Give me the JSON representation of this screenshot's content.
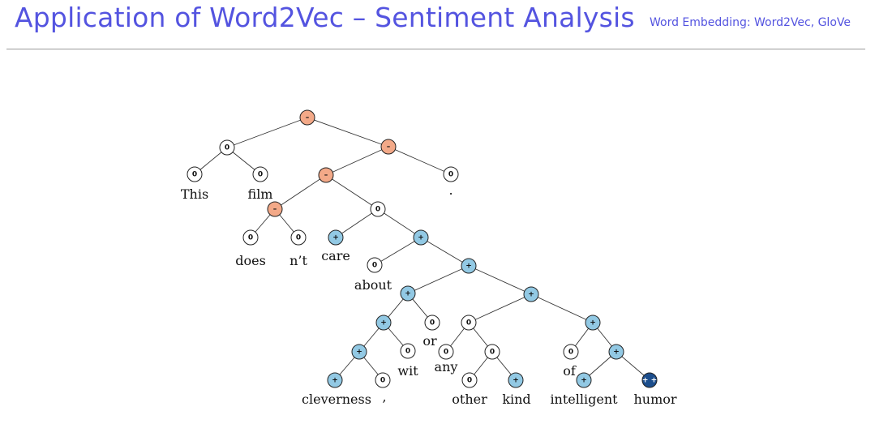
{
  "header": {
    "title": "Application of Word2Vec – Sentiment Analysis",
    "subtitle": "Word Embedding: Word2Vec, GloVe"
  },
  "colors": {
    "negative": "#f3a988",
    "neutral": "#ffffff",
    "positive": "#92c9e4",
    "very_positive": "#1c4e8c",
    "title": "#5454e0"
  },
  "tree": {
    "nodes": [
      {
        "id": "n_root",
        "label": "–",
        "sentiment": "negative"
      },
      {
        "id": "n_this_film",
        "label": "0",
        "sentiment": "neutral"
      },
      {
        "id": "n_this",
        "label": "0",
        "sentiment": "neutral"
      },
      {
        "id": "n_film",
        "label": "0",
        "sentiment": "neutral"
      },
      {
        "id": "n_vp",
        "label": "–",
        "sentiment": "negative"
      },
      {
        "id": "n_vp2",
        "label": "–",
        "sentiment": "negative"
      },
      {
        "id": "n_period",
        "label": "0",
        "sentiment": "neutral"
      },
      {
        "id": "n_doesnt",
        "label": "–",
        "sentiment": "negative"
      },
      {
        "id": "n_does",
        "label": "0",
        "sentiment": "neutral"
      },
      {
        "id": "n_nt",
        "label": "0",
        "sentiment": "neutral"
      },
      {
        "id": "n_care_phrase",
        "label": "0",
        "sentiment": "neutral"
      },
      {
        "id": "n_care",
        "label": "+",
        "sentiment": "positive"
      },
      {
        "id": "n_about_phrase",
        "label": "+",
        "sentiment": "positive"
      },
      {
        "id": "n_about",
        "label": "0",
        "sentiment": "neutral"
      },
      {
        "id": "n_np_top",
        "label": "+",
        "sentiment": "positive"
      },
      {
        "id": "n_cwo",
        "label": "+",
        "sentiment": "positive"
      },
      {
        "id": "n_cw",
        "label": "+",
        "sentiment": "positive"
      },
      {
        "id": "n_c_comma",
        "label": "+",
        "sentiment": "positive"
      },
      {
        "id": "n_cleverness",
        "label": "+",
        "sentiment": "positive"
      },
      {
        "id": "n_comma",
        "label": "0",
        "sentiment": "neutral"
      },
      {
        "id": "n_wit",
        "label": "0",
        "sentiment": "neutral"
      },
      {
        "id": "n_or",
        "label": "0",
        "sentiment": "neutral"
      },
      {
        "id": "n_any_phrase",
        "label": "+",
        "sentiment": "positive"
      },
      {
        "id": "n_aok",
        "label": "0",
        "sentiment": "neutral"
      },
      {
        "id": "n_any",
        "label": "0",
        "sentiment": "neutral"
      },
      {
        "id": "n_ok",
        "label": "0",
        "sentiment": "neutral"
      },
      {
        "id": "n_other",
        "label": "0",
        "sentiment": "neutral"
      },
      {
        "id": "n_kind",
        "label": "+",
        "sentiment": "positive"
      },
      {
        "id": "n_of_phrase",
        "label": "+",
        "sentiment": "positive"
      },
      {
        "id": "n_of",
        "label": "0",
        "sentiment": "neutral"
      },
      {
        "id": "n_ih",
        "label": "+",
        "sentiment": "positive"
      },
      {
        "id": "n_intelligent",
        "label": "+",
        "sentiment": "positive"
      },
      {
        "id": "n_humor",
        "label": "+ +",
        "sentiment": "very_positive"
      }
    ],
    "words": [
      {
        "node": "n_this",
        "text": "This"
      },
      {
        "node": "n_film",
        "text": "film"
      },
      {
        "node": "n_period",
        "text": "."
      },
      {
        "node": "n_does",
        "text": "does"
      },
      {
        "node": "n_nt",
        "text": "n’t"
      },
      {
        "node": "n_care",
        "text": "care"
      },
      {
        "node": "n_about",
        "text": "about"
      },
      {
        "node": "n_cleverness",
        "text": "cleverness"
      },
      {
        "node": "n_comma",
        "text": ","
      },
      {
        "node": "n_wit",
        "text": "wit"
      },
      {
        "node": "n_or",
        "text": "or"
      },
      {
        "node": "n_any",
        "text": "any"
      },
      {
        "node": "n_other",
        "text": "other"
      },
      {
        "node": "n_kind",
        "text": "kind"
      },
      {
        "node": "n_of",
        "text": "of"
      },
      {
        "node": "n_intelligent",
        "text": "intelligent"
      },
      {
        "node": "n_humor",
        "text": "humor"
      }
    ],
    "edges": [
      [
        "n_root",
        "n_this_film"
      ],
      [
        "n_root",
        "n_vp"
      ],
      [
        "n_this_film",
        "n_this"
      ],
      [
        "n_this_film",
        "n_film"
      ],
      [
        "n_vp",
        "n_vp2"
      ],
      [
        "n_vp",
        "n_period"
      ],
      [
        "n_vp2",
        "n_doesnt"
      ],
      [
        "n_vp2",
        "n_care_phrase"
      ],
      [
        "n_doesnt",
        "n_does"
      ],
      [
        "n_doesnt",
        "n_nt"
      ],
      [
        "n_care_phrase",
        "n_care"
      ],
      [
        "n_care_phrase",
        "n_about_phrase"
      ],
      [
        "n_about_phrase",
        "n_about"
      ],
      [
        "n_about_phrase",
        "n_np_top"
      ],
      [
        "n_np_top",
        "n_cwo"
      ],
      [
        "n_np_top",
        "n_any_phrase"
      ],
      [
        "n_cwo",
        "n_cw"
      ],
      [
        "n_cwo",
        "n_or"
      ],
      [
        "n_cw",
        "n_c_comma"
      ],
      [
        "n_cw",
        "n_wit"
      ],
      [
        "n_c_comma",
        "n_cleverness"
      ],
      [
        "n_c_comma",
        "n_comma"
      ],
      [
        "n_any_phrase",
        "n_aok"
      ],
      [
        "n_any_phrase",
        "n_of_phrase"
      ],
      [
        "n_aok",
        "n_any"
      ],
      [
        "n_aok",
        "n_ok"
      ],
      [
        "n_ok",
        "n_other"
      ],
      [
        "n_ok",
        "n_kind"
      ],
      [
        "n_of_phrase",
        "n_of"
      ],
      [
        "n_of_phrase",
        "n_ih"
      ],
      [
        "n_ih",
        "n_intelligent"
      ],
      [
        "n_ih",
        "n_humor"
      ]
    ]
  }
}
